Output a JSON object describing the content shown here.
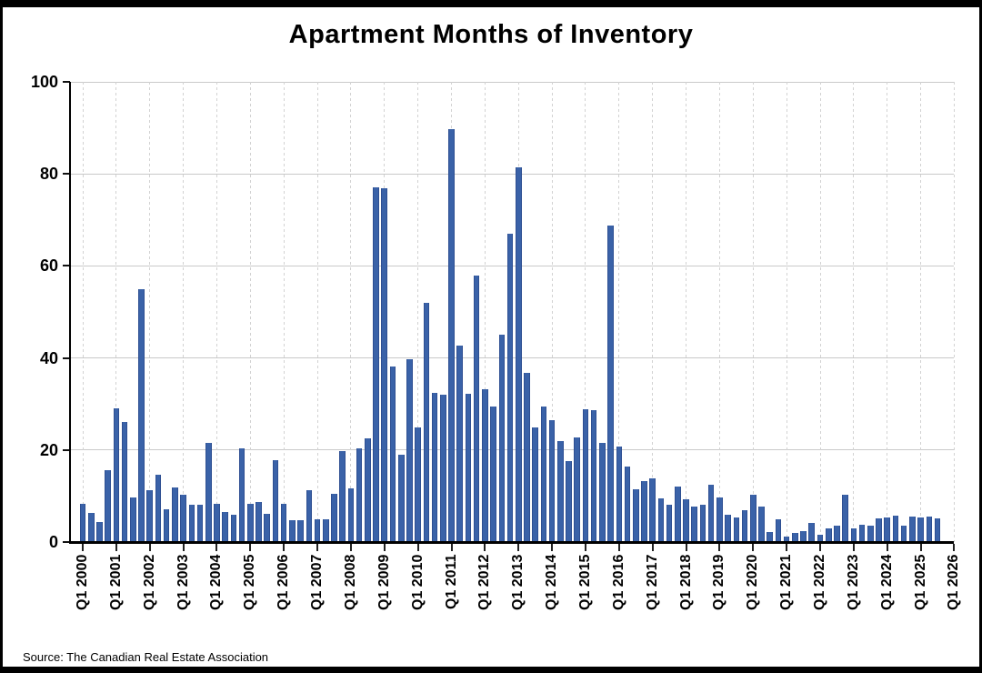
{
  "title": "Apartment Months of Inventory",
  "source": "Source: The Canadian Real Estate Association",
  "chart_data": {
    "type": "bar",
    "title": "Apartment Months of Inventory",
    "xlabel": "",
    "ylabel": "",
    "ylim": [
      0,
      100
    ],
    "y_ticks": [
      0,
      20,
      40,
      60,
      80,
      100
    ],
    "y_tick_labels": [
      "0",
      "20",
      "40",
      "60",
      "80",
      "100"
    ],
    "x_tick_labels": [
      "Q1 2000",
      "Q1 2001",
      "Q1 2002",
      "Q1 2003",
      "Q1 2004",
      "Q1 2005",
      "Q1 2006",
      "Q1 2007",
      "Q1 2008",
      "Q1 2009",
      "Q1 2010",
      "Q1 2011",
      "Q1 2012",
      "Q1 2013",
      "Q1 2014",
      "Q1 2015",
      "Q1 2016",
      "Q1 2017",
      "Q1 2018",
      "Q1 2019",
      "Q1 2020",
      "Q1 2021",
      "Q1 2022",
      "Q1 2023",
      "Q1 2024",
      "Q1 2025",
      "Q1 2026"
    ],
    "start_period": "Q1 2000",
    "end_period": "Q3 2025",
    "periods_per_year": 4,
    "grid": "horizontal solid + vertical dashed at each Q1",
    "legend": "none",
    "bar_color": "#3a62a8",
    "bar_edge_color": "#2e4f92",
    "gridline_color": "#c9c9c9",
    "values": [
      8.3,
      6.3,
      4.4,
      15.7,
      29.1,
      26.1,
      9.6,
      54.9,
      11.3,
      14.7,
      7.2,
      11.8,
      10.2,
      8.2,
      8.2,
      21.5,
      8.3,
      6.6,
      5.9,
      20.3,
      8.3,
      8.6,
      6.2,
      17.8,
      8.3,
      4.7,
      4.7,
      11.2,
      4.9,
      4.9,
      10.4,
      19.8,
      11.6,
      20.4,
      22.5,
      77.0,
      76.8,
      38.2,
      19.0,
      39.7,
      24.9,
      51.9,
      32.5,
      32.1,
      89.8,
      42.7,
      32.2,
      58.0,
      33.3,
      29.5,
      45.0,
      67.0,
      81.4,
      36.8,
      25.0,
      29.4,
      26.5,
      22.0,
      17.6,
      22.8,
      28.9,
      28.7,
      21.5,
      68.7,
      20.8,
      16.5,
      11.4,
      13.3,
      13.8,
      9.5,
      8.1,
      12.1,
      9.2,
      7.7,
      8.2,
      12.5,
      9.6,
      5.9,
      5.3,
      7.0,
      10.3,
      7.7,
      2.2,
      4.9,
      1.1,
      2.0,
      2.4,
      4.2,
      1.5,
      3.0,
      3.6,
      10.3,
      3.0,
      3.7,
      3.5,
      5.1,
      5.3,
      5.7,
      3.6,
      5.6,
      5.4,
      5.5,
      5.1
    ]
  }
}
